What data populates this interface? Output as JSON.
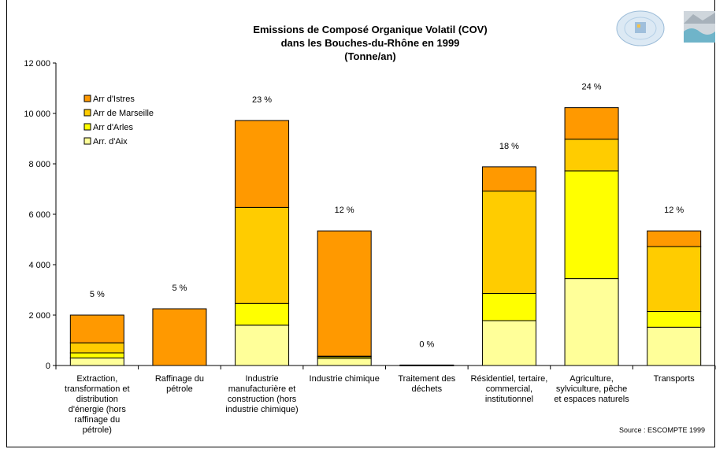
{
  "chart_data": {
    "type": "bar",
    "stacked": true,
    "title": [
      "Emissions de Composé Organique Volatil (COV)",
      "dans les Bouches-du-Rhône en 1999",
      "(Tonne/an)"
    ],
    "ylim": [
      0,
      12000
    ],
    "yticks": [
      0,
      2000,
      4000,
      6000,
      8000,
      10000,
      12000
    ],
    "ytick_labels": [
      "0",
      "2 000",
      "4 000",
      "6 000",
      "8 000",
      "10 000",
      "12 000"
    ],
    "categories": [
      [
        "Extraction,",
        "transformation et",
        "distribution",
        "d'énergie (hors",
        "raffinage du",
        "pétrole)"
      ],
      [
        "Raffinage du",
        "pétrole"
      ],
      [
        "Industrie",
        "manufacturière et",
        "construction (hors",
        "industrie chimique)"
      ],
      [
        "Industrie chimique"
      ],
      [
        "Traitement des",
        "déchets"
      ],
      [
        "Résidentiel, tertaire,",
        "commercial,",
        "institutionnel"
      ],
      [
        "Agriculture,",
        "sylviculture, pêche",
        "et espaces naturels"
      ],
      [
        "Transports"
      ]
    ],
    "series": [
      {
        "name": "Arr. d'Aix",
        "color": "#FFFF99",
        "values": [
          300,
          0,
          1600,
          280,
          0,
          1780,
          3450,
          1520
        ]
      },
      {
        "name": "Arr d'Arles",
        "color": "#FFFF00",
        "values": [
          200,
          0,
          860,
          70,
          0,
          1080,
          4270,
          620
        ]
      },
      {
        "name": "Arr de Marseille",
        "color": "#FFCC00",
        "values": [
          400,
          0,
          3810,
          20,
          0,
          4060,
          1260,
          2580
        ]
      },
      {
        "name": "Arr d'Istres",
        "color": "#FF9900",
        "values": [
          1100,
          2250,
          3450,
          4970,
          20,
          960,
          1250,
          620
        ]
      }
    ],
    "percent_labels": [
      "5 %",
      "5 %",
      "23 %",
      "12 %",
      "0 %",
      "18 %",
      "24 %",
      "12 %"
    ],
    "legend_order": [
      "Arr d'Istres",
      "Arr de Marseille",
      "Arr d'Arles",
      "Arr. d'Aix"
    ],
    "legend_position": "top-left",
    "grid": false,
    "source": "Source : ESCOMPTE 1999"
  }
}
